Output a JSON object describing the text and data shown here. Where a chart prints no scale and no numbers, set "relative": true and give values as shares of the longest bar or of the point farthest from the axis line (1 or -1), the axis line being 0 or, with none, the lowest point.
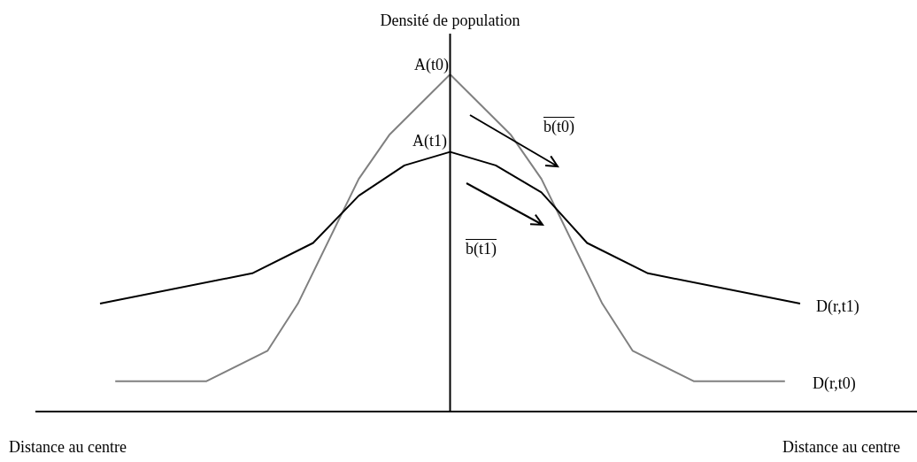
{
  "chart_data": {
    "type": "line",
    "relative": true,
    "ylabel": "Densité de population",
    "xlabel": "Distance au centre",
    "legend": false,
    "marker": "none",
    "line_style": "solid",
    "categories": [
      null,
      null,
      null,
      null,
      null,
      null,
      null,
      null,
      null,
      null,
      null,
      null,
      null,
      null,
      null,
      null,
      null,
      null,
      null,
      null,
      null,
      null,
      null,
      null,
      null,
      null,
      null,
      null,
      null,
      null,
      null,
      null,
      null,
      null,
      null,
      null,
      null,
      null,
      null,
      null,
      null,
      null,
      null,
      null,
      null,
      null,
      null
    ],
    "series": [
      {
        "name": "D(r,t1)",
        "color": "#000000",
        "values": [
          0.32,
          null,
          null,
          null,
          null,
          null,
          null,
          null,
          null,
          null,
          0.41,
          null,
          null,
          null,
          0.5,
          null,
          null,
          0.64,
          null,
          null,
          0.73,
          null,
          null,
          0.77,
          null,
          null,
          0.73,
          null,
          null,
          0.65,
          null,
          null,
          0.5,
          null,
          null,
          null,
          0.41,
          null,
          null,
          null,
          null,
          null,
          null,
          null,
          null,
          null,
          0.32
        ]
      },
      {
        "name": "D(r,t0)",
        "color": "#808080",
        "values": [
          null,
          0.09,
          null,
          null,
          null,
          null,
          null,
          0.09,
          null,
          null,
          null,
          0.18,
          null,
          0.32,
          null,
          null,
          null,
          0.69,
          null,
          0.82,
          null,
          null,
          null,
          1,
          null,
          null,
          null,
          0.82,
          null,
          0.69,
          null,
          null,
          null,
          0.32,
          null,
          0.18,
          null,
          null,
          null,
          0.09,
          null,
          null,
          null,
          null,
          null,
          0.09,
          null
        ]
      }
    ],
    "annotations": [
      "Distance au centre",
      "A(t0)",
      "A(t1)",
      "b(t0)",
      "b(t1)"
    ]
  }
}
